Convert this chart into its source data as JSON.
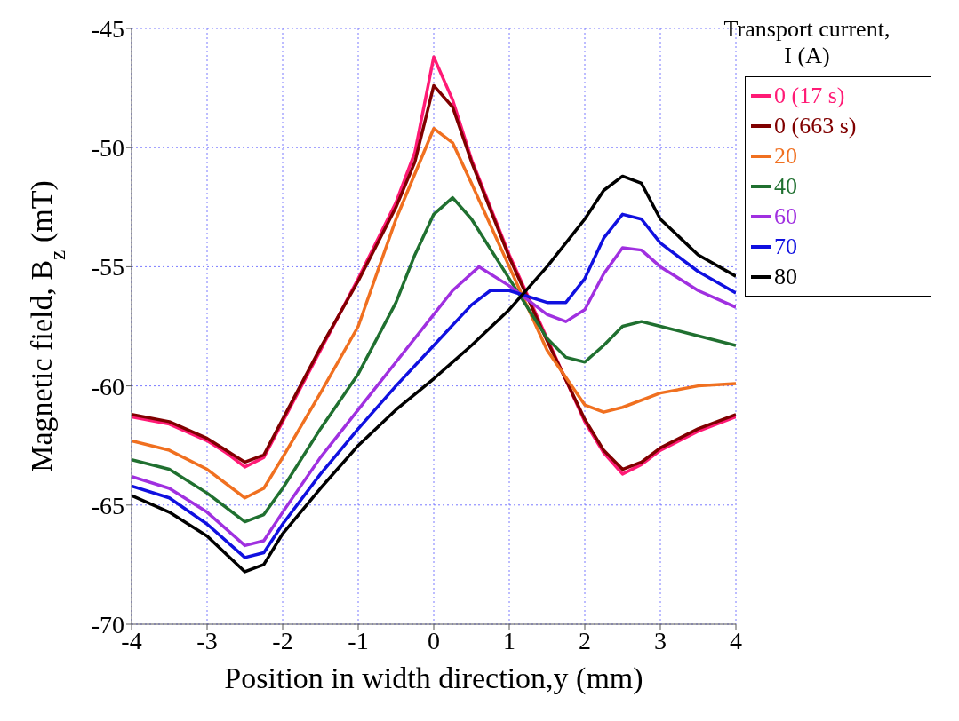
{
  "chart_data": {
    "type": "line",
    "xlabel": "Position in width direction,y (mm)",
    "ylabel": "Magnetic field, B$_{z}$ (mT)",
    "legend_title": "Transport current, I (A)",
    "legend": "right",
    "grid": true,
    "line_style": "solid",
    "marker": "none",
    "xlim": [
      -4,
      4
    ],
    "xticks": [
      -4,
      -3,
      -2,
      -1,
      0,
      1,
      2,
      3,
      4
    ],
    "ylim": [
      -70,
      -45
    ],
    "yticks": [
      -70,
      -65,
      -60,
      -55,
      -50,
      -45
    ],
    "series": [
      {
        "name": "0 (17 s)",
        "color": "#ff1a75",
        "x": [
          -4,
          -3.5,
          -3,
          -2.75,
          -2.5,
          -2.25,
          -2,
          -1.5,
          -1,
          -0.5,
          -0.25,
          0,
          0.25,
          0.5,
          1,
          1.5,
          2,
          2.25,
          2.5,
          2.75,
          3,
          3.5,
          4
        ],
        "values": [
          -61.3,
          -61.6,
          -62.3,
          -62.8,
          -63.4,
          -63.0,
          -61.5,
          -58.5,
          -55.5,
          -52.3,
          -50.2,
          -46.2,
          -48.0,
          -50.5,
          -54.5,
          -58.0,
          -61.5,
          -62.8,
          -63.7,
          -63.3,
          -62.7,
          -61.9,
          -61.3
        ]
      },
      {
        "name": "0 (663 s)",
        "color": "#800000",
        "x": [
          -4,
          -3.5,
          -3,
          -2.75,
          -2.5,
          -2.25,
          -2,
          -1.5,
          -1,
          -0.5,
          -0.25,
          0,
          0.25,
          0.5,
          1,
          1.5,
          2,
          2.25,
          2.5,
          2.75,
          3,
          3.5,
          4
        ],
        "values": [
          -61.2,
          -61.5,
          -62.2,
          -62.7,
          -63.2,
          -62.9,
          -61.4,
          -58.4,
          -55.6,
          -52.5,
          -50.6,
          -47.4,
          -48.3,
          -50.6,
          -54.6,
          -58.1,
          -61.4,
          -62.7,
          -63.5,
          -63.2,
          -62.6,
          -61.8,
          -61.2
        ]
      },
      {
        "name": "20",
        "color": "#f07020",
        "x": [
          -4,
          -3.5,
          -3,
          -2.5,
          -2.25,
          -2,
          -1.5,
          -1,
          -0.5,
          0,
          0.25,
          0.5,
          1,
          1.5,
          2,
          2.25,
          2.5,
          3,
          3.5,
          4
        ],
        "values": [
          -62.3,
          -62.7,
          -63.5,
          -64.7,
          -64.3,
          -63,
          -60.3,
          -57.5,
          -53,
          -49.2,
          -49.8,
          -51.5,
          -55,
          -58.5,
          -60.8,
          -61.1,
          -60.9,
          -60.3,
          -60,
          -59.9
        ]
      },
      {
        "name": "40",
        "color": "#207030",
        "x": [
          -4,
          -3.5,
          -3,
          -2.5,
          -2.25,
          -2,
          -1.5,
          -1,
          -0.5,
          -0.25,
          0,
          0.25,
          0.5,
          1,
          1.5,
          1.75,
          2,
          2.25,
          2.5,
          2.75,
          3,
          3.5,
          4
        ],
        "values": [
          -63.1,
          -63.5,
          -64.5,
          -65.7,
          -65.4,
          -64.3,
          -61.8,
          -59.5,
          -56.5,
          -54.5,
          -52.8,
          -52.1,
          -53,
          -55.5,
          -58,
          -58.8,
          -59,
          -58.3,
          -57.5,
          -57.3,
          -57.5,
          -57.9,
          -58.3
        ]
      },
      {
        "name": "60",
        "color": "#a030e0",
        "x": [
          -4,
          -3.5,
          -3,
          -2.5,
          -2.25,
          -2,
          -1.5,
          -1,
          -0.5,
          0,
          0.25,
          0.6,
          1,
          1.5,
          1.75,
          2,
          2.25,
          2.5,
          2.75,
          3,
          3.5,
          4
        ],
        "values": [
          -63.8,
          -64.3,
          -65.3,
          -66.7,
          -66.5,
          -65.3,
          -63,
          -61,
          -59,
          -57,
          -56,
          -55,
          -55.8,
          -57,
          -57.3,
          -56.8,
          -55.3,
          -54.2,
          -54.3,
          -55,
          -56,
          -56.7
        ]
      },
      {
        "name": "70",
        "color": "#1010e0",
        "x": [
          -4,
          -3.5,
          -3,
          -2.5,
          -2.25,
          -2,
          -1.5,
          -1,
          -0.5,
          0,
          0.5,
          0.75,
          1,
          1.5,
          1.75,
          2,
          2.25,
          2.5,
          2.75,
          3,
          3.5,
          4
        ],
        "values": [
          -64.2,
          -64.7,
          -65.8,
          -67.2,
          -67,
          -65.8,
          -63.7,
          -61.8,
          -60,
          -58.3,
          -56.6,
          -56,
          -56,
          -56.5,
          -56.5,
          -55.5,
          -53.8,
          -52.8,
          -53,
          -54,
          -55.2,
          -56.1
        ]
      },
      {
        "name": "80",
        "color": "#000000",
        "x": [
          -4,
          -3.5,
          -3,
          -2.5,
          -2.25,
          -2,
          -1.5,
          -1,
          -0.5,
          0,
          0.5,
          1,
          1.5,
          2,
          2.25,
          2.5,
          2.75,
          3,
          3.5,
          4
        ],
        "values": [
          -64.6,
          -65.3,
          -66.3,
          -67.8,
          -67.5,
          -66.2,
          -64.3,
          -62.5,
          -61,
          -59.7,
          -58.3,
          -56.8,
          -55,
          -53,
          -51.8,
          -51.2,
          -51.5,
          -53,
          -54.5,
          -55.4
        ]
      }
    ]
  }
}
